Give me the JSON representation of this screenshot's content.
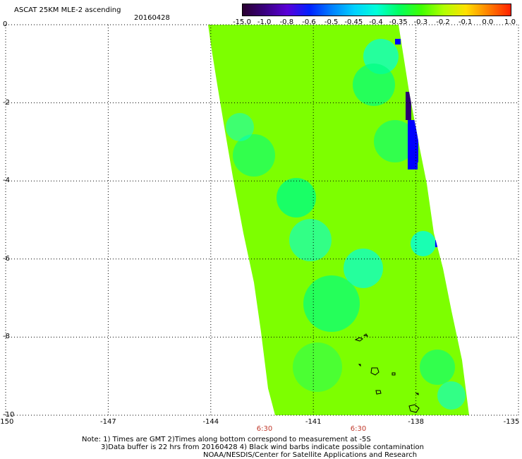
{
  "header": {
    "title": "ASCAT 25KM MLE-2 ascending",
    "date": "20160428"
  },
  "colorbar": {
    "labels": [
      "-15.0",
      "-1.0",
      "-0.8",
      "-0.6",
      "-0.5",
      "-0.45",
      "-0.4",
      "-0.35",
      "-0.3",
      "-0.2",
      "-0.1",
      "0.0",
      "1.0"
    ],
    "colors": [
      "#2a0030",
      "#3a0080",
      "#5a00d8",
      "#0020ff",
      "#0080ff",
      "#00d0ff",
      "#00ffd8",
      "#00ff60",
      "#40ff00",
      "#b0ff00",
      "#ffe000",
      "#ff8000",
      "#ff2000"
    ]
  },
  "axes": {
    "x_ticks": [
      "-150",
      "-147",
      "-144",
      "-141",
      "-138",
      "-135"
    ],
    "y_ticks": [
      "0",
      "-2",
      "-4",
      "-6",
      "-8",
      "-10"
    ],
    "x_range": [
      -150,
      -135
    ],
    "y_range": [
      0,
      -10
    ],
    "grid": "dotted"
  },
  "times": [
    "6:30",
    "6:30"
  ],
  "notes": {
    "line1": "Note: 1) Times are GMT 2)Times along bottom correspond to measurement at -5S",
    "line2": "3)Data buffer is 22 hrs from 20160428 4) Black wind barbs indicate possible contamination",
    "line3": "NOAA/NESDIS/Center for Satellite Applications and Research"
  },
  "swath": {
    "dominant_color": "#7dff00",
    "low_color": "#00ff80",
    "cyan_color": "#00ffe0",
    "deep_color": "#0000ff",
    "edge_color": "#2a0070"
  }
}
